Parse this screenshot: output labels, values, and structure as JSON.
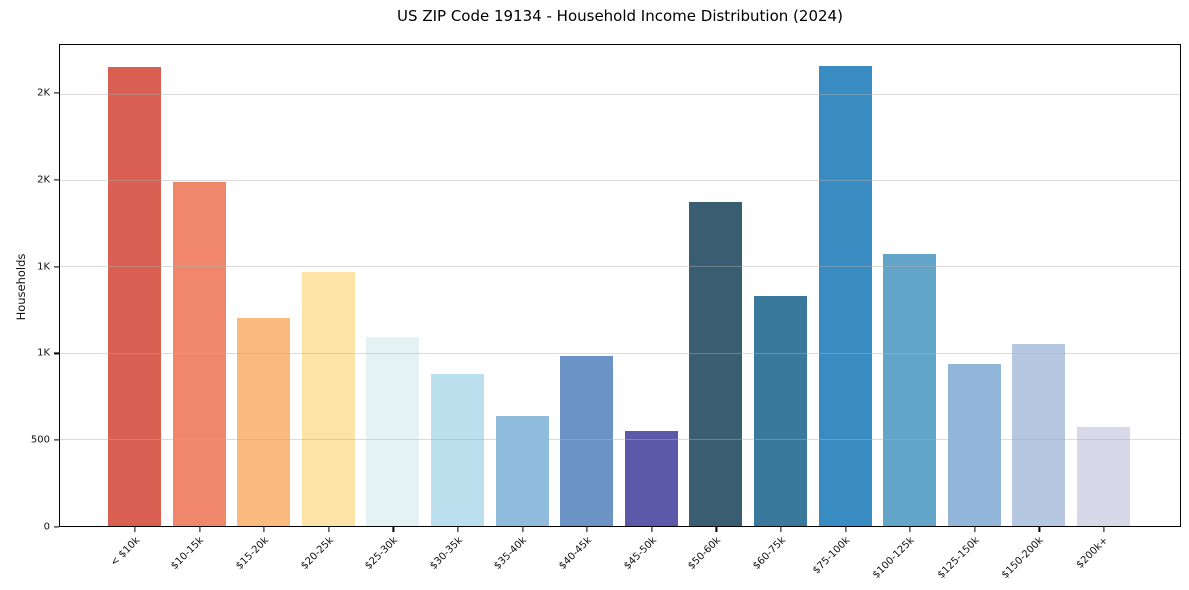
{
  "chart_data": {
    "type": "bar",
    "title": "US ZIP Code 19134 - Household Income Distribution (2024)",
    "xlabel": "",
    "ylabel": "Households",
    "categories": [
      "< $10k",
      "$10-15k",
      "$15-20k",
      "$20-25k",
      "$25-30k",
      "$30-35k",
      "$35-40k",
      "$40-45k",
      "$45-50k",
      "$50-60k",
      "$60-75k",
      "$75-100k",
      "$100-125k",
      "$125-150k",
      "$150-200k",
      "$200k+"
    ],
    "values": [
      2645,
      1985,
      1200,
      1465,
      1090,
      875,
      635,
      980,
      545,
      1870,
      1325,
      2650,
      1570,
      935,
      1050,
      570
    ],
    "colors": [
      "#d85f52",
      "#f0876a",
      "#fab97e",
      "#fde4a6",
      "#e5f2f4",
      "#bbdfec",
      "#8fbcdc",
      "#6b93c6",
      "#5c5aa8",
      "#395e72",
      "#38799c",
      "#398cc2",
      "#63a5c9",
      "#92b5da",
      "#b6c7e2",
      "#d7d9e8"
    ],
    "ylim": [
      0,
      2783
    ],
    "yticks": {
      "values": [
        0,
        500,
        1000,
        1500,
        2000,
        2500
      ],
      "labels": [
        "0",
        "500",
        "1K",
        "1K",
        "2K",
        "2K"
      ]
    },
    "grid": "horizontal",
    "legend": "none",
    "x_tick_rotation": 45
  }
}
